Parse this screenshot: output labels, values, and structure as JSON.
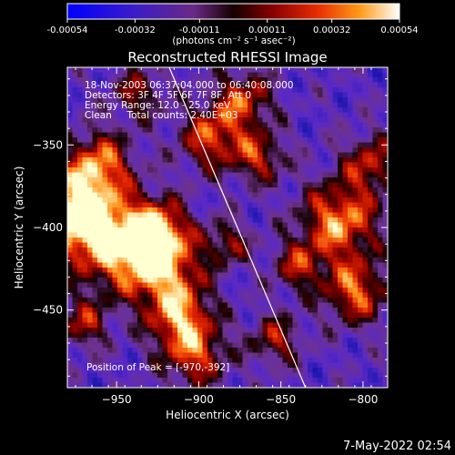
{
  "colorbar": {
    "ticks": [
      "-0.00054",
      "-0.00032",
      "-0.00011",
      "0.00011",
      "0.00032",
      "0.00054"
    ],
    "unit_label": "(photons cm⁻² s⁻¹ asec⁻²)",
    "min": -0.00054,
    "max": 0.00054
  },
  "chart_data": {
    "type": "heatmap",
    "title": "Reconstructed RHESSI Image",
    "xlabel": "Heliocentric X (arcsec)",
    "ylabel": "Heliocentric Y (arcsec)",
    "xlim": [
      -980,
      -785
    ],
    "ylim": [
      -497,
      -303
    ],
    "x_ticks": [
      {
        "value": -950,
        "label": "−950"
      },
      {
        "value": -900,
        "label": "−900"
      },
      {
        "value": -850,
        "label": "−850"
      },
      {
        "value": -800,
        "label": "−800"
      }
    ],
    "y_ticks": [
      {
        "value": -350,
        "label": "−350"
      },
      {
        "value": -400,
        "label": "−400"
      },
      {
        "value": -450,
        "label": "−450"
      }
    ],
    "limb_line": {
      "x": [
        -918,
        -835
      ],
      "y": [
        -303,
        -497
      ]
    },
    "peak": {
      "x": -970,
      "y": -392
    },
    "annotations": [
      "18-Nov-2003 06:37:04.000 to 06:40:08.000",
      "Detectors: 3F 4F 5F 6F 7F 8F, Att 0",
      "Energy Range: 12.0 - 25.0 keV",
      "Clean     Total counts: 2.40E+03"
    ],
    "peak_label": "Position of Peak = [-970,-392]"
  },
  "timestamp": "7-May-2022 02:54"
}
